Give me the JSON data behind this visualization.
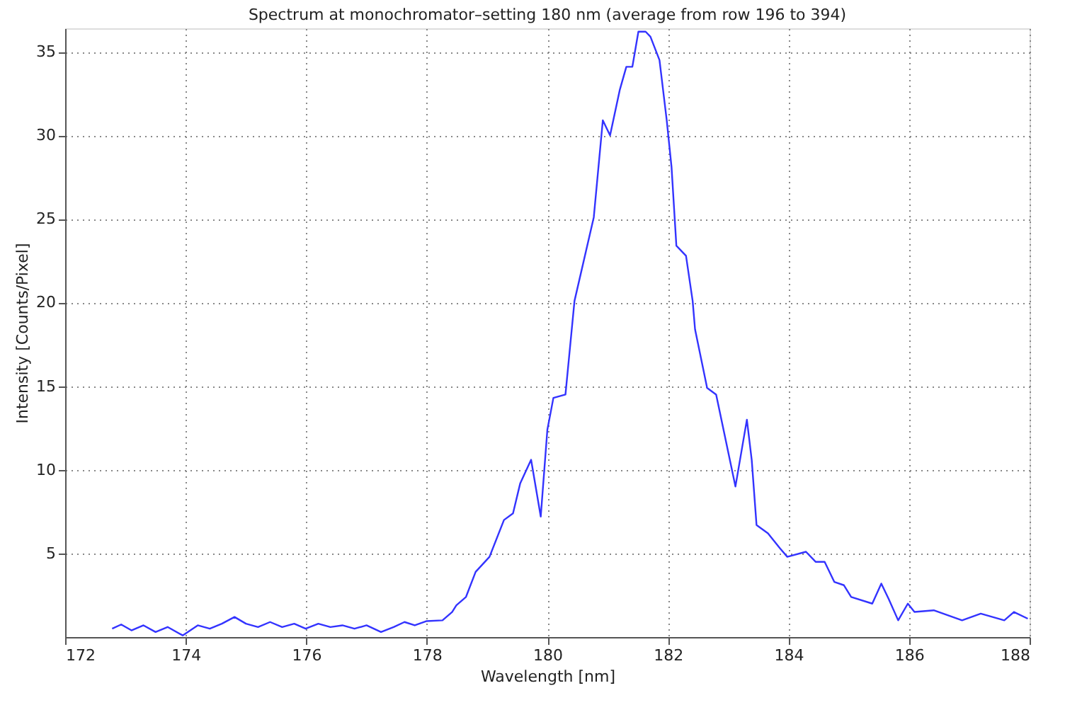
{
  "chart_data": {
    "type": "line",
    "title": "Spectrum at monochromator–setting 180 nm (average from row 196 to 394)",
    "xlabel": "Wavelength [nm]",
    "ylabel": "Intensity [Counts/Pixel]",
    "xlim": [
      172,
      188
    ],
    "xticks": [
      172,
      174,
      176,
      178,
      180,
      182,
      184,
      186,
      188
    ],
    "ylim": [
      0,
      36.4
    ],
    "yticks": [
      5,
      10,
      15,
      20,
      25,
      30,
      35
    ],
    "grid": true,
    "line_style": "solid",
    "marker": "none",
    "series": [
      {
        "color": "#3333ff",
        "x": [
          172.78,
          172.93,
          173.1,
          173.3,
          173.5,
          173.7,
          173.95,
          174.2,
          174.4,
          174.6,
          174.81,
          175.0,
          175.2,
          175.4,
          175.6,
          175.8,
          175.99,
          176.2,
          176.4,
          176.6,
          176.8,
          177.0,
          177.24,
          177.45,
          177.63,
          177.8,
          177.99,
          178.26,
          178.42,
          178.49,
          178.65,
          178.81,
          179.04,
          179.28,
          179.43,
          179.55,
          179.73,
          179.89,
          180.0,
          180.1,
          180.3,
          180.45,
          180.77,
          180.92,
          181.04,
          181.2,
          181.31,
          181.41,
          181.51,
          181.63,
          181.71,
          181.86,
          181.98,
          182.06,
          182.14,
          182.3,
          182.41,
          182.45,
          182.65,
          182.8,
          183.12,
          183.31,
          183.39,
          183.47,
          183.66,
          183.86,
          183.98,
          184.29,
          184.45,
          184.6,
          184.76,
          184.92,
          185.04,
          185.39,
          185.54,
          185.66,
          185.82,
          185.98,
          186.09,
          186.41,
          186.88,
          187.19,
          187.58,
          187.74,
          187.97
        ],
        "values": [
          0.5,
          0.75,
          0.4,
          0.7,
          0.3,
          0.6,
          0.1,
          0.7,
          0.5,
          0.8,
          1.2,
          0.8,
          0.6,
          0.9,
          0.6,
          0.8,
          0.5,
          0.8,
          0.6,
          0.7,
          0.5,
          0.7,
          0.3,
          0.6,
          0.9,
          0.7,
          0.95,
          1.0,
          1.5,
          1.9,
          2.4,
          3.9,
          4.8,
          7.0,
          7.4,
          9.2,
          10.6,
          7.2,
          12.4,
          14.3,
          14.5,
          20.1,
          25.1,
          30.9,
          30.0,
          32.7,
          34.1,
          34.1,
          36.2,
          36.2,
          35.9,
          34.5,
          30.9,
          28.1,
          23.4,
          22.8,
          20.1,
          18.4,
          14.9,
          14.5,
          9.0,
          13.0,
          10.6,
          6.7,
          6.2,
          5.3,
          4.8,
          5.1,
          4.5,
          4.5,
          3.3,
          3.1,
          2.4,
          2.0,
          3.2,
          2.3,
          1.0,
          2.0,
          1.5,
          1.6,
          1.0,
          1.4,
          1.0,
          1.5,
          1.1
        ]
      }
    ]
  }
}
